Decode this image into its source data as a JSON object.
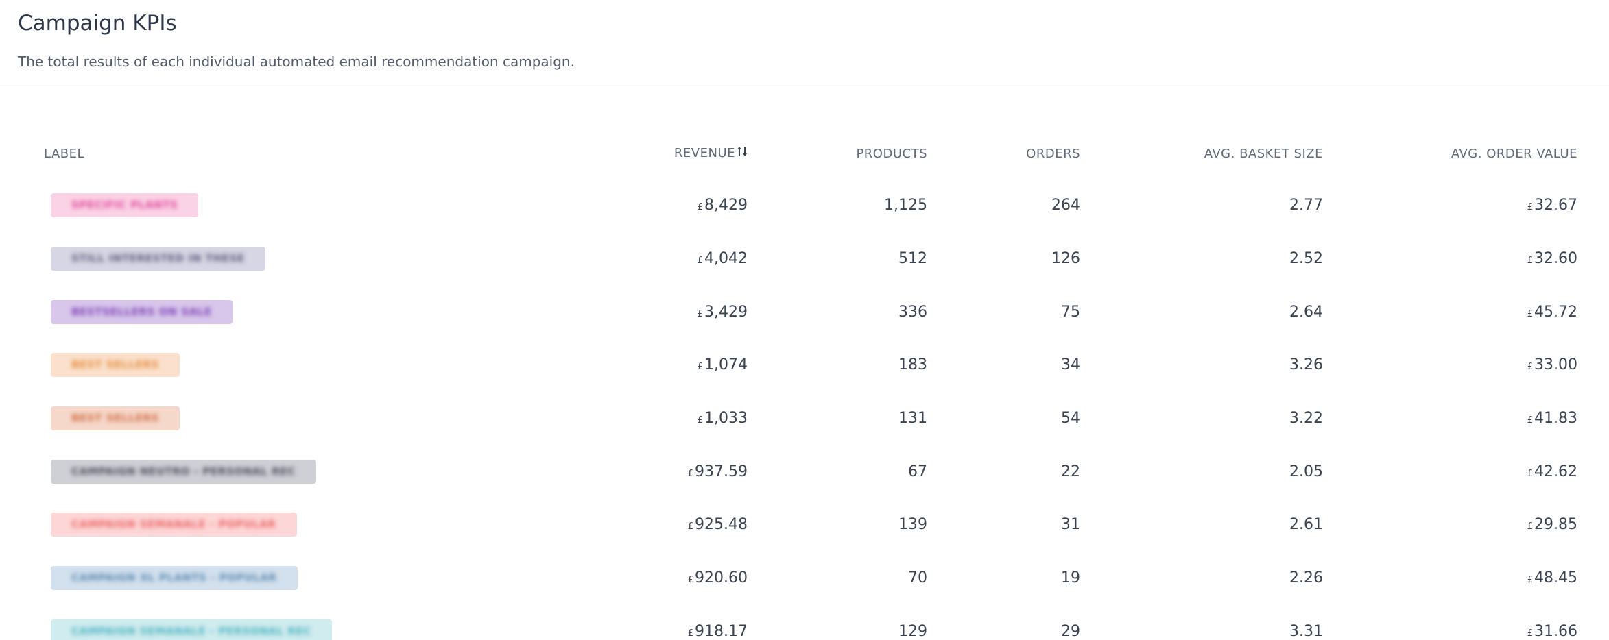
{
  "header": {
    "title": "Campaign KPIs",
    "subtitle": "The total results of each individual automated email recommendation campaign."
  },
  "columns": {
    "label": "LABEL",
    "revenue": "REVENUE",
    "products": "PRODUCTS",
    "orders": "ORDERS",
    "avg_basket_size": "AVG. BASKET SIZE",
    "avg_order_value": "AVG. ORDER VALUE"
  },
  "currency_symbol": "£",
  "sort_icon": "sort-icon",
  "rows": [
    {
      "label": "SPECIFIC PLANTS",
      "label_bg": "#fbd3e6",
      "label_fg": "#e0479a",
      "revenue": "8,429",
      "products": "1,125",
      "orders": "264",
      "avg_basket_size": "2.77",
      "avg_order_value": "32.67"
    },
    {
      "label": "STILL INTERESTED IN THESE",
      "label_bg": "#d7d6e4",
      "label_fg": "#5b5a7a",
      "revenue": "4,042",
      "products": "512",
      "orders": "126",
      "avg_basket_size": "2.52",
      "avg_order_value": "32.60"
    },
    {
      "label": "BESTSELLERS ON SALE",
      "label_bg": "#d9c7eb",
      "label_fg": "#7b3fb5",
      "revenue": "3,429",
      "products": "336",
      "orders": "75",
      "avg_basket_size": "2.64",
      "avg_order_value": "45.72"
    },
    {
      "label": "BEST SELLERS",
      "label_bg": "#fbe1cd",
      "label_fg": "#e58a3a",
      "revenue": "1,074",
      "products": "183",
      "orders": "34",
      "avg_basket_size": "3.26",
      "avg_order_value": "33.00"
    },
    {
      "label": "BEST SELLERS",
      "label_bg": "#f6d8cb",
      "label_fg": "#d06d42",
      "revenue": "1,033",
      "products": "131",
      "orders": "54",
      "avg_basket_size": "3.22",
      "avg_order_value": "41.83"
    },
    {
      "label": "CAMPAIGN NEUTRO - PERSONAL REC",
      "label_bg": "#cfcfd6",
      "label_fg": "#4a4a5a",
      "revenue": "937.59",
      "products": "67",
      "orders": "22",
      "avg_basket_size": "2.05",
      "avg_order_value": "42.62"
    },
    {
      "label": "CAMPAIGN SEMANALE - POPULAR",
      "label_bg": "#fdd7d7",
      "label_fg": "#ec6363",
      "revenue": "925.48",
      "products": "139",
      "orders": "31",
      "avg_basket_size": "2.61",
      "avg_order_value": "29.85"
    },
    {
      "label": "CAMPAIGN XL PLANTS - POPULAR",
      "label_bg": "#d3e1ee",
      "label_fg": "#5a86b0",
      "revenue": "920.60",
      "products": "70",
      "orders": "19",
      "avg_basket_size": "2.26",
      "avg_order_value": "48.45"
    },
    {
      "label": "CAMPAIGN SEMANALE - PERSONAL REC",
      "label_bg": "#d0ecef",
      "label_fg": "#4cb3bf",
      "revenue": "918.17",
      "products": "129",
      "orders": "29",
      "avg_basket_size": "3.31",
      "avg_order_value": "31.66"
    }
  ]
}
